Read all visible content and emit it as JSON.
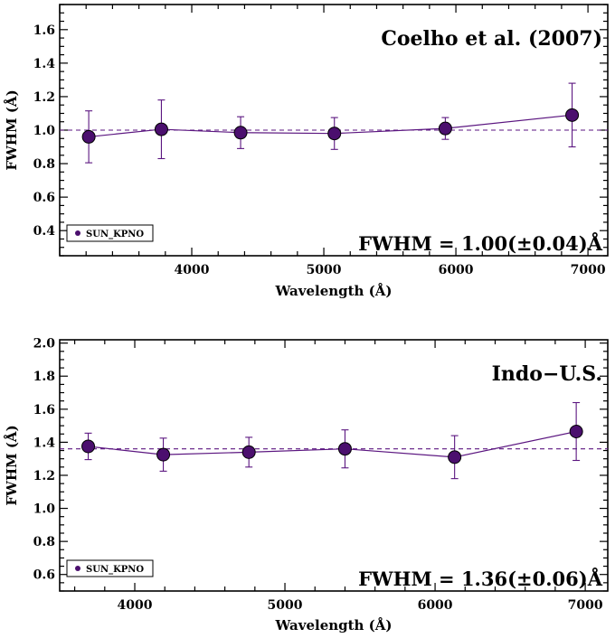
{
  "colors": {
    "series": "#5b1680",
    "marker_fill": "#4b0f6e",
    "axes": "#000000"
  },
  "chart_data": [
    {
      "type": "scatter",
      "title": "Coelho et al. (2007)",
      "xlabel": "Wavelength (Å)",
      "ylabel": "FWHM (Å)",
      "xlim": [
        3000,
        7150
      ],
      "ylim": [
        0.25,
        1.75
      ],
      "xticks": [
        4000,
        5000,
        6000,
        7000
      ],
      "yticks": [
        0.4,
        0.6,
        0.8,
        1.0,
        1.2,
        1.4,
        1.6
      ],
      "ytick_labels": [
        "0.4",
        "0.6",
        "0.8",
        "1.0",
        "1.2",
        "1.4",
        "1.6"
      ],
      "reference_line": 1.0,
      "annotation": "FWHM = 1.00(±0.04)Å",
      "legend": {
        "label": "SUN_KPNO",
        "position": "bottom-left"
      },
      "series": [
        {
          "name": "SUN_KPNO",
          "x": [
            3220,
            3770,
            4370,
            5080,
            5920,
            6880
          ],
          "y": [
            0.96,
            1.005,
            0.985,
            0.98,
            1.01,
            1.09
          ],
          "err": [
            0.155,
            0.175,
            0.095,
            0.095,
            0.065,
            0.19
          ]
        }
      ]
    },
    {
      "type": "scatter",
      "title": "Indo−U.S.",
      "xlabel": "Wavelength (Å)",
      "ylabel": "FWHM (Å)",
      "xlim": [
        3500,
        7150
      ],
      "ylim": [
        0.5,
        2.02
      ],
      "xticks": [
        4000,
        5000,
        6000,
        7000
      ],
      "yticks": [
        0.6,
        0.8,
        1.0,
        1.2,
        1.4,
        1.6,
        1.8,
        2.0
      ],
      "ytick_labels": [
        "0.6",
        "0.8",
        "1.0",
        "1.2",
        "1.4",
        "1.6",
        "1.8",
        "2.0"
      ],
      "reference_line": 1.36,
      "annotation": "FWHM = 1.36(±0.06)Å",
      "legend": {
        "label": "SUN_KPNO",
        "position": "bottom-left"
      },
      "series": [
        {
          "name": "SUN_KPNO",
          "x": [
            3690,
            4190,
            4760,
            5400,
            6130,
            6940
          ],
          "y": [
            1.375,
            1.325,
            1.34,
            1.36,
            1.31,
            1.465
          ],
          "err": [
            0.08,
            0.1,
            0.09,
            0.115,
            0.13,
            0.175
          ]
        }
      ]
    }
  ]
}
